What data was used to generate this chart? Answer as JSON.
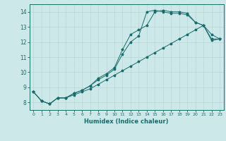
{
  "xlabel": "Humidex (Indice chaleur)",
  "bg_color": "#cce8e8",
  "grid_color": "#b8d8d8",
  "line_color": "#1a6b6b",
  "xlim": [
    -0.5,
    23.5
  ],
  "ylim": [
    7.5,
    14.5
  ],
  "xticks": [
    0,
    1,
    2,
    3,
    4,
    5,
    6,
    7,
    8,
    9,
    10,
    11,
    12,
    13,
    14,
    15,
    16,
    17,
    18,
    19,
    20,
    21,
    22,
    23
  ],
  "yticks": [
    8,
    9,
    10,
    11,
    12,
    13,
    14
  ],
  "line1_x": [
    0,
    1,
    2,
    3,
    4,
    5,
    6,
    7,
    8,
    9,
    10,
    11,
    12,
    13,
    14,
    15,
    16,
    17,
    18,
    19,
    20,
    21,
    22,
    23
  ],
  "line1_y": [
    8.7,
    8.1,
    7.9,
    8.3,
    8.3,
    8.6,
    8.8,
    9.1,
    9.6,
    9.9,
    10.3,
    11.5,
    12.5,
    12.8,
    13.1,
    14.0,
    14.1,
    14.0,
    14.0,
    13.9,
    13.3,
    13.1,
    12.1,
    12.2
  ],
  "line2_x": [
    0,
    1,
    2,
    3,
    4,
    5,
    6,
    7,
    8,
    9,
    10,
    11,
    12,
    13,
    14,
    15,
    16,
    17,
    18,
    19,
    20,
    21,
    22,
    23
  ],
  "line2_y": [
    8.7,
    8.1,
    7.9,
    8.3,
    8.3,
    8.6,
    8.8,
    9.1,
    9.5,
    9.8,
    10.2,
    11.2,
    12.0,
    12.4,
    14.0,
    14.1,
    14.0,
    13.9,
    13.9,
    13.8,
    13.3,
    13.1,
    12.5,
    12.2
  ],
  "line3_x": [
    0,
    1,
    2,
    3,
    4,
    5,
    6,
    7,
    8,
    9,
    10,
    11,
    12,
    13,
    14,
    15,
    16,
    17,
    18,
    19,
    20,
    21,
    22,
    23
  ],
  "line3_y": [
    8.7,
    8.1,
    7.9,
    8.3,
    8.3,
    8.5,
    8.7,
    8.9,
    9.2,
    9.5,
    9.8,
    10.1,
    10.4,
    10.7,
    11.0,
    11.3,
    11.6,
    11.9,
    12.2,
    12.5,
    12.8,
    13.1,
    12.2,
    12.2
  ]
}
